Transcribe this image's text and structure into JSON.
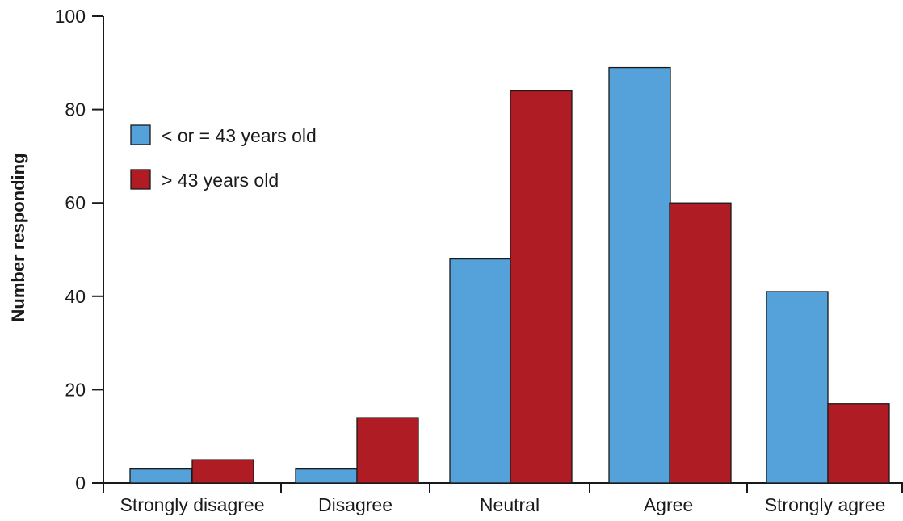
{
  "chart_data": {
    "type": "bar",
    "title": "",
    "xlabel": "",
    "ylabel": "Number responding",
    "categories": [
      "Strongly disagree",
      "Disagree",
      "Neutral",
      "Agree",
      "Strongly agree"
    ],
    "series": [
      {
        "name": "< or = 43 years old",
        "values": [
          3,
          3,
          48,
          89,
          41
        ],
        "color": "#55a2db"
      },
      {
        "name": "> 43 years old",
        "values": [
          5,
          14,
          84,
          60,
          17
        ],
        "color": "#b01c24"
      }
    ],
    "ylim": [
      0,
      100
    ],
    "yticks": [
      0,
      20,
      40,
      60,
      80,
      100
    ],
    "grid": false,
    "legend_position": "top-left"
  }
}
